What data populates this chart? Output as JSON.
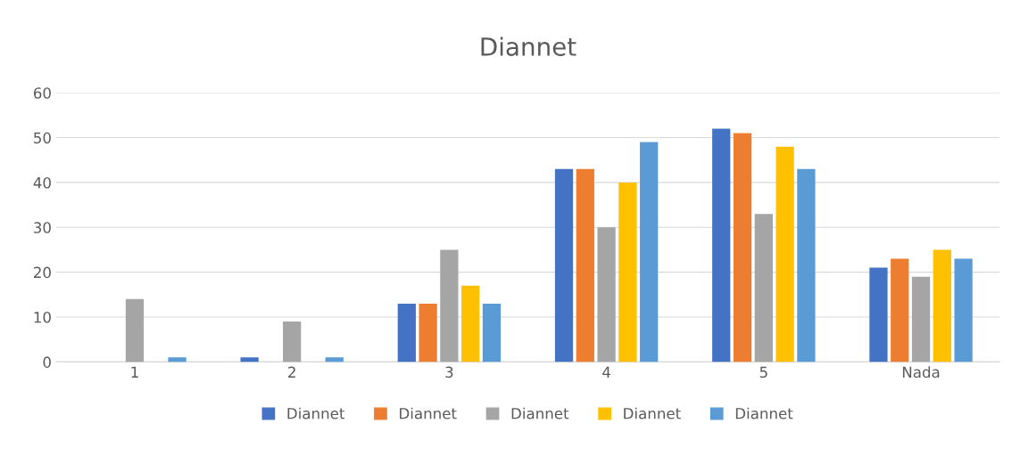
{
  "chart_data": {
    "type": "bar",
    "title": "Diannet",
    "categories": [
      "1",
      "2",
      "3",
      "4",
      "5",
      "Nada"
    ],
    "series": [
      {
        "name": "Diannet",
        "color": "#4472c4",
        "values": [
          0,
          1,
          13,
          43,
          52,
          21
        ]
      },
      {
        "name": "Diannet",
        "color": "#ed7d31",
        "values": [
          0,
          0,
          13,
          43,
          51,
          23
        ]
      },
      {
        "name": "Diannet",
        "color": "#a5a5a5",
        "values": [
          14,
          9,
          25,
          30,
          33,
          19
        ]
      },
      {
        "name": "Diannet",
        "color": "#ffc000",
        "values": [
          0,
          0,
          17,
          40,
          48,
          25
        ]
      },
      {
        "name": "Diannet",
        "color": "#5b9bd5",
        "values": [
          1,
          1,
          13,
          49,
          43,
          23
        ]
      }
    ],
    "ylim": [
      0,
      60
    ],
    "yticks": [
      0,
      10,
      20,
      30,
      40,
      50,
      60
    ],
    "grid": "y",
    "legend": "bottom"
  }
}
